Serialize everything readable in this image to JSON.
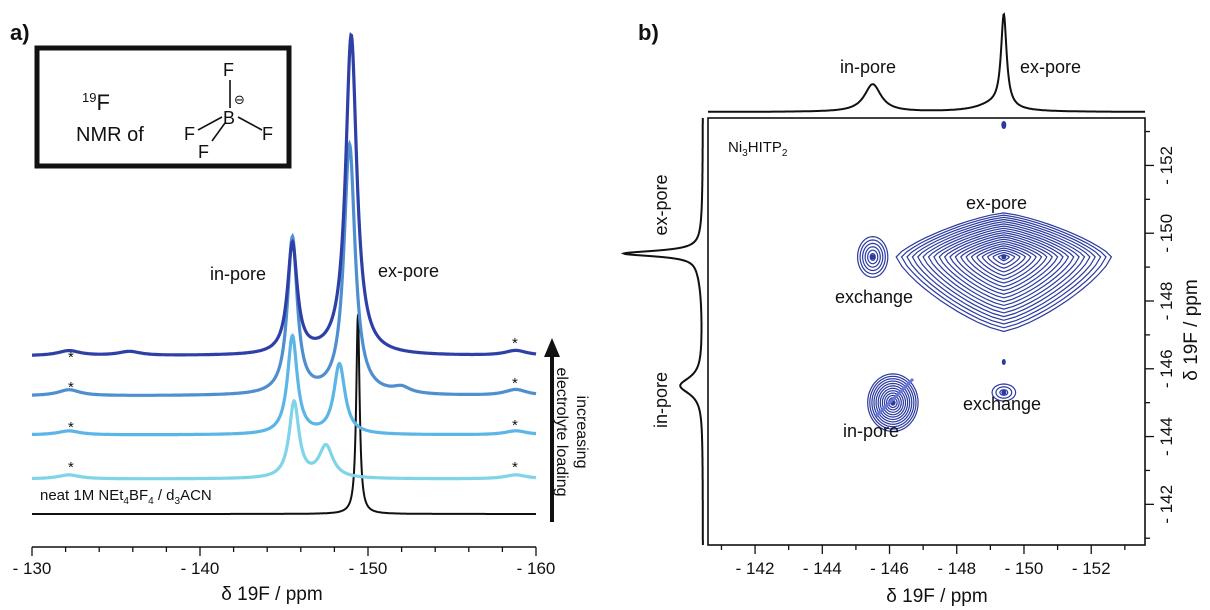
{
  "panel_a": {
    "label": "a)",
    "inset": {
      "nucleus": "19F",
      "line2": "NMR of",
      "atoms": {
        "F": "F",
        "B": "B",
        "charge": "⊖"
      }
    },
    "peak_labels": {
      "in_pore": "in-pore",
      "ex_pore": "ex-pore"
    },
    "neat_label": "neat 1M NEt4BF4 / d3ACN",
    "arrow_label": {
      "line1": "increasing",
      "line2": "electrolyte loading"
    },
    "spinning_sideband_marker": "*",
    "xlabel": "δ 19F / ppm"
  },
  "panel_b": {
    "label": "b)",
    "sample": "Ni3HITP2",
    "top_labels": {
      "in_pore": "in-pore",
      "ex_pore": "ex-pore"
    },
    "left_labels": {
      "in_pore": "in-pore",
      "ex_pore": "ex-pore"
    },
    "peak_labels": {
      "ex_pore": "ex-pore",
      "exchange_left": "exchange",
      "exchange_right": "exchange",
      "in_pore": "in-pore"
    },
    "xlabel": "δ 19F / ppm",
    "ylabel": "δ 19F / ppm"
  },
  "chart_data": [
    {
      "type": "line",
      "title": "",
      "xlabel": "δ 19F / ppm",
      "ylabel": "",
      "x_reversed": true,
      "xlim": [
        -130,
        -160
      ],
      "xticks": [
        "- 130",
        "- 140",
        "- 150",
        "- 160"
      ],
      "x_tick_values": [
        -130,
        -140,
        -150,
        -160
      ],
      "series": [
        {
          "name": "neat 1M NEt4BF4 / d3ACN",
          "color": "#111111",
          "peaks": [
            {
              "center": -149.4,
              "width": 0.12,
              "height": 1.0
            }
          ]
        },
        {
          "color": "#80d4e8",
          "peaks": [
            {
              "center": -145.6,
              "width": 0.35,
              "height": 0.38
            },
            {
              "center": -147.5,
              "width": 0.5,
              "height": 0.16
            },
            {
              "center": -132.2,
              "width": 0.8,
              "height": 0.02
            },
            {
              "center": -158.8,
              "width": 0.8,
              "height": 0.02
            }
          ]
        },
        {
          "color": "#5bb5e6",
          "peaks": [
            {
              "center": -145.5,
              "width": 0.35,
              "height": 0.49
            },
            {
              "center": -148.3,
              "width": 0.4,
              "height": 0.35
            },
            {
              "center": -132.2,
              "width": 0.8,
              "height": 0.02
            },
            {
              "center": -158.8,
              "width": 0.8,
              "height": 0.02
            }
          ]
        },
        {
          "color": "#4f8fd0",
          "peaks": [
            {
              "center": -145.5,
              "width": 0.35,
              "height": 0.78
            },
            {
              "center": -148.9,
              "width": 0.4,
              "height": 1.25
            },
            {
              "center": -152.0,
              "width": 0.6,
              "height": 0.03
            },
            {
              "center": -132.2,
              "width": 0.8,
              "height": 0.03
            },
            {
              "center": -158.8,
              "width": 0.8,
              "height": 0.03
            }
          ]
        },
        {
          "color": "#2e3fa6",
          "peaks": [
            {
              "center": -145.5,
              "width": 0.35,
              "height": 0.55
            },
            {
              "center": -149.0,
              "width": 0.4,
              "height": 1.6
            },
            {
              "center": -135.8,
              "width": 0.8,
              "height": 0.02
            },
            {
              "center": -132.2,
              "width": 0.8,
              "height": 0.025
            },
            {
              "center": -158.8,
              "width": 0.8,
              "height": 0.025
            }
          ]
        }
      ]
    },
    {
      "type": "heatmap",
      "title": "",
      "xlabel": "δ 19F / ppm",
      "ylabel": "δ 19F / ppm",
      "x_reversed": true,
      "xlim": [
        -140.6,
        -153.6
      ],
      "ylim": [
        -140.8,
        -153.4
      ],
      "xticks": [
        "- 142",
        "- 144",
        "- 146",
        "- 148",
        "- 150",
        "- 152"
      ],
      "x_tick_values": [
        -142,
        -144,
        -146,
        -148,
        -150,
        -152
      ],
      "yticks": [
        "- 142",
        "- 144",
        "- 146",
        "- 148",
        "- 150",
        "- 152"
      ],
      "y_tick_values": [
        -142,
        -144,
        -146,
        -148,
        -150,
        -152
      ],
      "contour_color": "#2b3aa0",
      "cross_peaks": [
        {
          "name": "ex-pore",
          "x": -149.4,
          "y": -149.3,
          "x_halfwidth": 3.2,
          "y_halfwidth_up": 1.3,
          "y_halfwidth_down": 2.2,
          "levels": 20
        },
        {
          "name": "exchange",
          "x": -145.5,
          "y": -149.3,
          "x_halfwidth": 0.45,
          "y_halfwidth_up": 0.6,
          "y_halfwidth_down": 0.6,
          "levels": 6
        },
        {
          "name": "in-pore",
          "x": -146.1,
          "y": -145.0,
          "x_halfwidth": 0.75,
          "y_halfwidth_up": 0.85,
          "y_halfwidth_down": 0.85,
          "levels": 12
        },
        {
          "name": "exchange",
          "x": -149.4,
          "y": -145.3,
          "x_halfwidth": 0.35,
          "y_halfwidth_up": 0.25,
          "y_halfwidth_down": 0.25,
          "levels": 3
        }
      ],
      "projection_peaks": [
        {
          "name": "in-pore",
          "center": -145.5,
          "width": 0.3,
          "height": 0.3
        },
        {
          "name": "ex-pore",
          "center": -149.4,
          "width": 0.1,
          "height": 1.0
        }
      ]
    }
  ]
}
